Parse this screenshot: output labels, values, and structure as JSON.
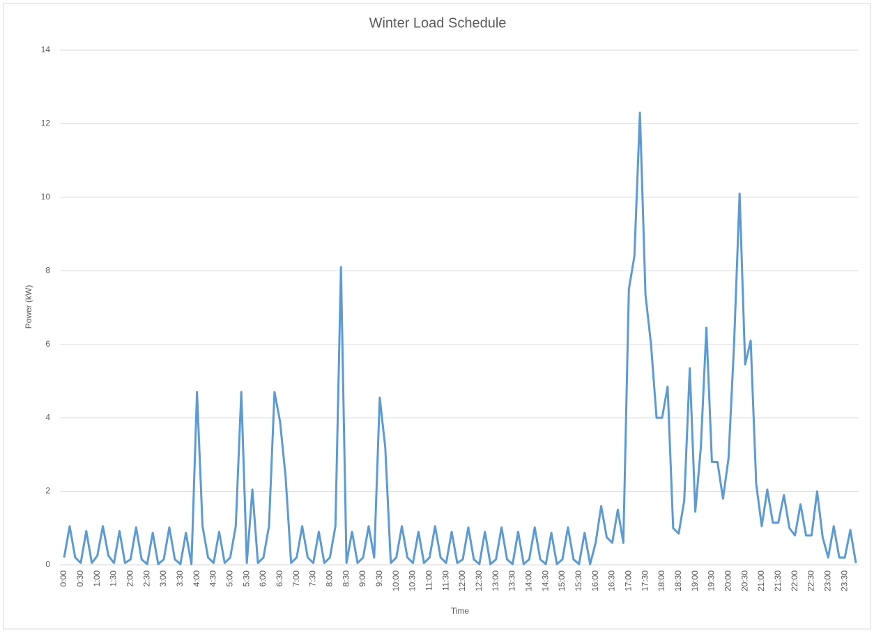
{
  "chart_data": {
    "type": "line",
    "title": "Winter Load Schedule",
    "x_label": "Time",
    "y_label": "Power (kW)",
    "categories": [
      "0:00",
      null,
      null,
      "0:30",
      null,
      null,
      "1:00",
      null,
      null,
      "1:30",
      null,
      null,
      "2:00",
      null,
      null,
      "2:30",
      null,
      null,
      "3:00",
      null,
      null,
      "3:30",
      null,
      null,
      "4:00",
      null,
      null,
      "4:30",
      null,
      null,
      "5:00",
      null,
      null,
      "5:30",
      null,
      null,
      "6:00",
      null,
      null,
      "6:30",
      null,
      null,
      "7:00",
      null,
      null,
      "7:30",
      null,
      null,
      "8:00",
      null,
      null,
      "8:30",
      null,
      null,
      "9:00",
      null,
      null,
      "9:30",
      null,
      null,
      "10:00",
      null,
      null,
      "10:30",
      null,
      null,
      "11:00",
      null,
      null,
      "11:30",
      null,
      null,
      "12:00",
      null,
      null,
      "12:30",
      null,
      null,
      "13:00",
      null,
      null,
      "13:30",
      null,
      null,
      "14:00",
      null,
      null,
      "14:30",
      null,
      null,
      "15:00",
      null,
      null,
      "15:30",
      null,
      null,
      "16:00",
      null,
      null,
      "16:30",
      null,
      null,
      "17:00",
      null,
      null,
      "17:30",
      null,
      null,
      "18:00",
      null,
      null,
      "18:30",
      null,
      null,
      "19:00",
      null,
      null,
      "19:30",
      null,
      null,
      "20:00",
      null,
      null,
      "20:30",
      null,
      null,
      "21:00",
      null,
      null,
      "21:30",
      null,
      null,
      "22:00",
      null,
      null,
      "22:30",
      null,
      null,
      "23:00",
      null,
      null,
      "23:30",
      null,
      null
    ],
    "series": [
      {
        "name": "Power",
        "color": "#5b9bd5",
        "values": [
          0.2,
          1.05,
          0.2,
          0.05,
          0.92,
          0.05,
          0.25,
          1.05,
          0.25,
          0.05,
          0.92,
          0.05,
          0.15,
          1.02,
          0.15,
          0.02,
          0.87,
          0.02,
          0.15,
          1.02,
          0.15,
          0.02,
          0.87,
          0.02,
          4.7,
          1.05,
          0.2,
          0.05,
          0.9,
          0.05,
          0.2,
          1.05,
          4.7,
          0.05,
          2.05,
          0.05,
          0.2,
          1.05,
          4.7,
          3.9,
          2.4,
          0.05,
          0.2,
          1.05,
          0.2,
          0.05,
          0.9,
          0.05,
          0.2,
          1.05,
          8.1,
          0.05,
          0.9,
          0.05,
          0.2,
          1.05,
          0.2,
          4.55,
          3.2,
          0.05,
          0.2,
          1.05,
          0.2,
          0.05,
          0.9,
          0.05,
          0.2,
          1.05,
          0.2,
          0.05,
          0.9,
          0.05,
          0.15,
          1.02,
          0.15,
          0.02,
          0.9,
          0.02,
          0.15,
          1.02,
          0.15,
          0.02,
          0.9,
          0.02,
          0.15,
          1.02,
          0.15,
          0.02,
          0.87,
          0.02,
          0.15,
          1.02,
          0.15,
          0.02,
          0.87,
          0.02,
          0.6,
          1.6,
          0.75,
          0.6,
          1.5,
          0.6,
          7.5,
          8.4,
          12.3,
          7.35,
          6.0,
          4.0,
          4.0,
          4.85,
          1.0,
          0.85,
          1.75,
          5.35,
          1.45,
          3.2,
          6.45,
          2.8,
          2.8,
          1.8,
          2.9,
          6.0,
          10.1,
          5.45,
          6.1,
          2.2,
          1.05,
          2.05,
          1.15,
          1.15,
          1.9,
          1.0,
          0.8,
          1.65,
          0.8,
          0.8,
          2.0,
          0.75,
          0.2,
          1.05,
          0.2,
          0.2,
          0.95,
          0.05
        ]
      }
    ],
    "ylim": [
      0,
      14
    ],
    "yticks": [
      0,
      2,
      4,
      6,
      8,
      10,
      12,
      14
    ],
    "grid": true
  }
}
